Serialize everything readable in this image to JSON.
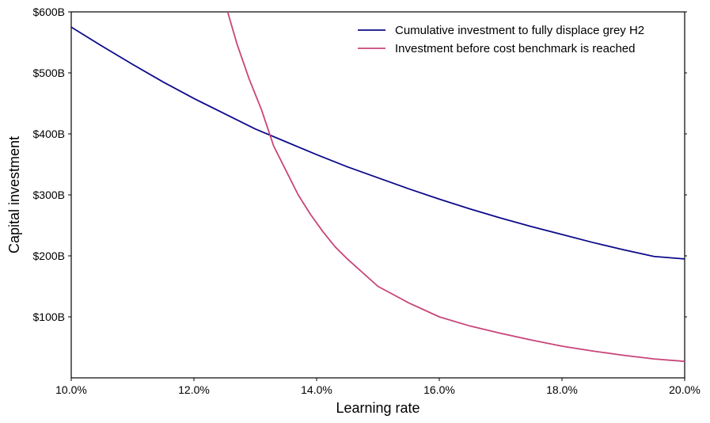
{
  "chart_data": {
    "type": "line",
    "xlabel": "Learning rate",
    "ylabel": "Capital investment",
    "xlim": [
      0.1,
      0.2
    ],
    "ylim": [
      0,
      600
    ],
    "x_ticks": [
      0.1,
      0.12,
      0.14,
      0.16,
      0.18,
      0.2
    ],
    "x_tick_labels": [
      "10.0%",
      "12.0%",
      "14.0%",
      "16.0%",
      "18.0%",
      "20.0%"
    ],
    "y_ticks": [
      100,
      200,
      300,
      400,
      500,
      600
    ],
    "y_tick_labels": [
      "$100B",
      "$200B",
      "$300B",
      "$400B",
      "$500B",
      "$600B"
    ],
    "grid": false,
    "legend_position": "top-right",
    "series": [
      {
        "name": "Cumulative investment to fully displace grey H2",
        "color": "#0d0a8a",
        "x": [
          0.1,
          0.105,
          0.11,
          0.115,
          0.12,
          0.125,
          0.13,
          0.135,
          0.14,
          0.145,
          0.15,
          0.155,
          0.16,
          0.165,
          0.17,
          0.175,
          0.18,
          0.185,
          0.19,
          0.195,
          0.2
        ],
        "y": [
          575,
          544,
          514,
          485,
          458,
          433,
          408,
          387,
          366,
          346,
          328,
          310,
          293,
          277,
          262,
          248,
          235,
          222,
          210,
          199,
          195
        ]
      },
      {
        "name": "Investment before cost benchmark is reached",
        "color": "#c8457a",
        "x": [
          0.1255,
          0.127,
          0.129,
          0.131,
          0.133,
          0.135,
          0.137,
          0.139,
          0.141,
          0.143,
          0.145,
          0.15,
          0.155,
          0.16,
          0.165,
          0.17,
          0.175,
          0.18,
          0.185,
          0.19,
          0.195,
          0.2
        ],
        "y": [
          600,
          548,
          490,
          440,
          380,
          340,
          300,
          268,
          240,
          215,
          195,
          150,
          123,
          100,
          85,
          73,
          62,
          52,
          44,
          37,
          31,
          27
        ]
      }
    ]
  }
}
